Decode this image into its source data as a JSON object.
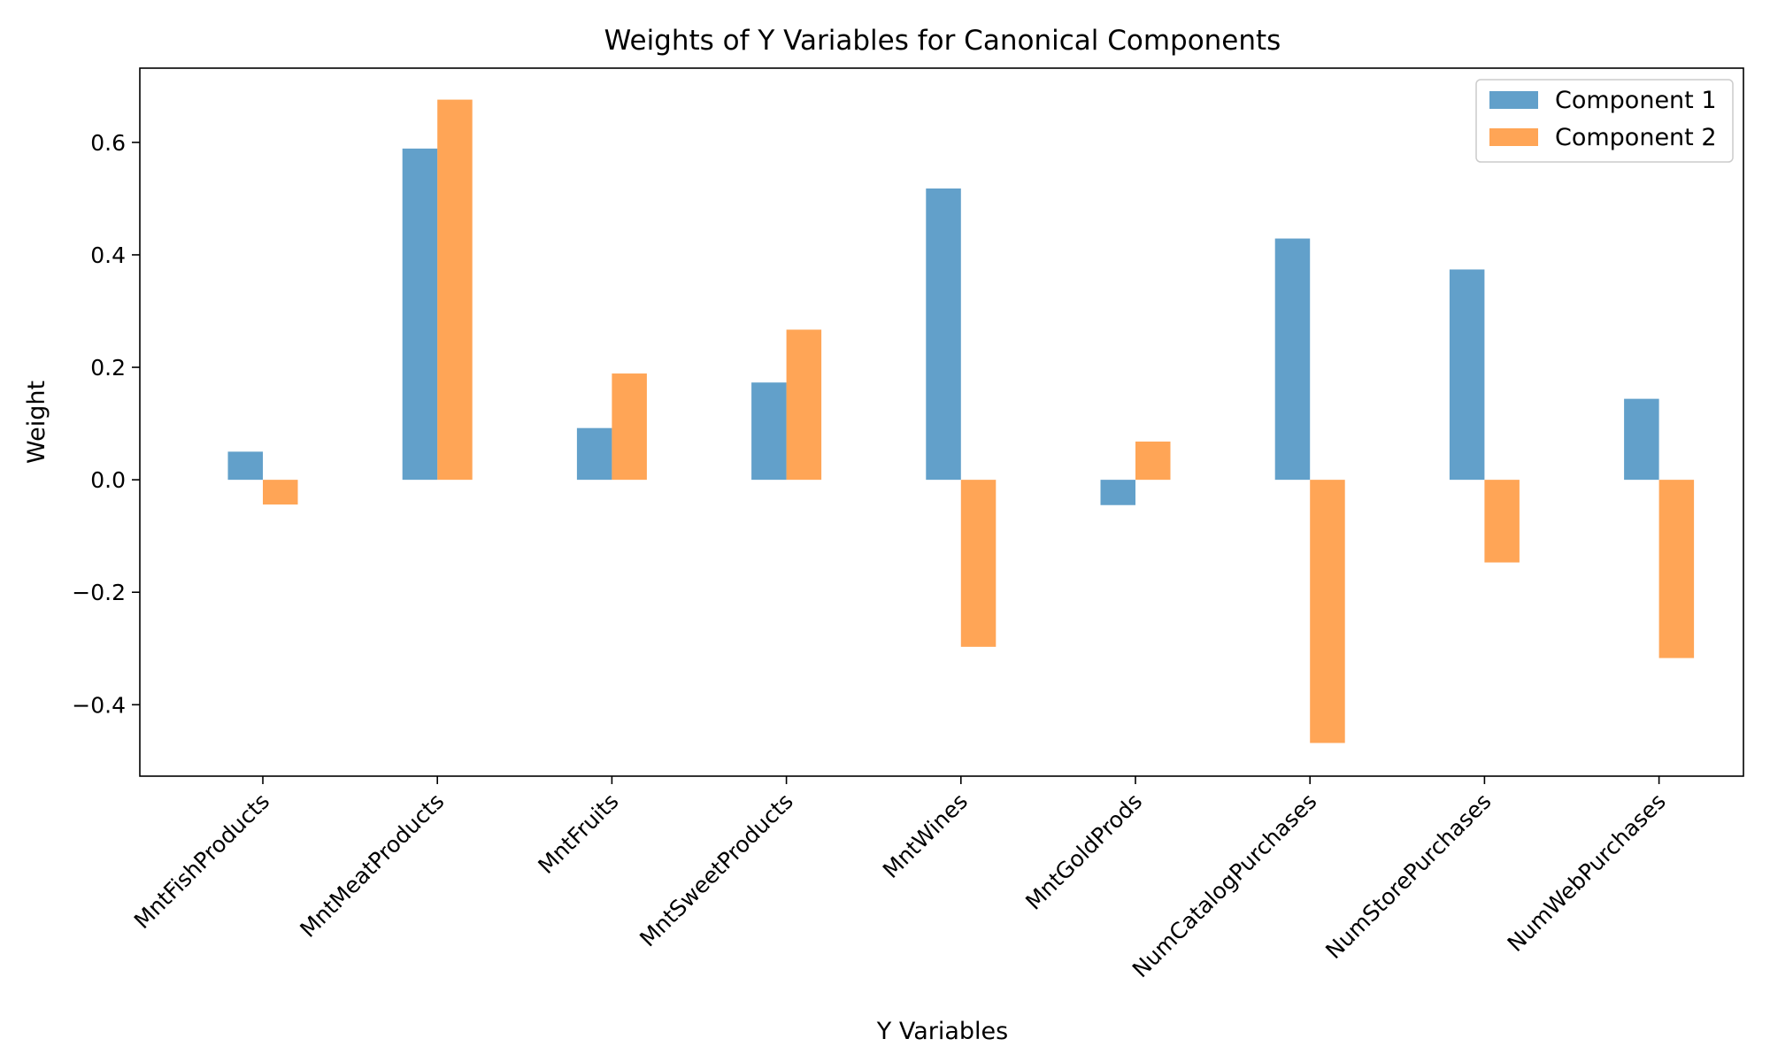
{
  "chart_data": {
    "type": "bar",
    "title": "Weights of Y Variables for Canonical Components",
    "xlabel": "Y Variables",
    "ylabel": "Weight",
    "categories": [
      "MntFishProducts",
      "MntMeatProducts",
      "MntFruits",
      "MntSweetProducts",
      "MntWines",
      "MntGoldProds",
      "NumCatalogPurchases",
      "NumStorePurchases",
      "NumWebPurchases"
    ],
    "series": [
      {
        "name": "Component 1",
        "color": "#1f77b4",
        "values": [
          0.05,
          0.589,
          0.092,
          0.173,
          0.518,
          -0.045,
          0.429,
          0.374,
          0.144
        ]
      },
      {
        "name": "Component 2",
        "color": "#ff7f0e",
        "values": [
          -0.044,
          0.676,
          0.189,
          0.267,
          -0.297,
          0.068,
          -0.468,
          -0.147,
          -0.317
        ]
      }
    ],
    "ylim": [
      -0.527,
      0.732
    ],
    "yticks": [
      -0.4,
      -0.2,
      0.0,
      0.2,
      0.4,
      0.6
    ],
    "ytick_labels": [
      "−0.4",
      "−0.2",
      "0.0",
      "0.2",
      "0.4",
      "0.6"
    ],
    "grid": false,
    "legend": "top-right",
    "bar_alpha": 0.7
  }
}
